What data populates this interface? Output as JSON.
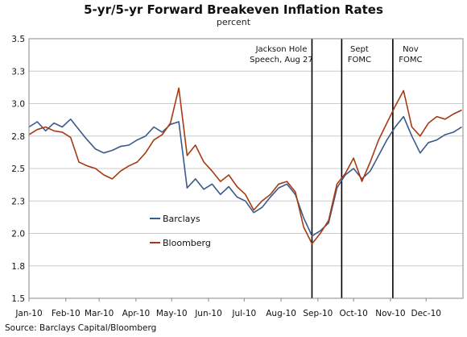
{
  "chart_data": {
    "type": "line",
    "title": "5-yr/5-yr Forward Breakeven Inflation Rates",
    "subtitle": "percent",
    "xlabel": "",
    "ylabel": "",
    "ylim": [
      1.5,
      3.5
    ],
    "y_ticks": [
      "1.5",
      "1.8",
      "2.0",
      "2.3",
      "2.5",
      "2.8",
      "3.0",
      "3.3",
      "3.5"
    ],
    "x_ticks": [
      "Jan-10",
      "Feb-10",
      "Mar-10",
      "Apr-10",
      "May-10",
      "Jun-10",
      "Jul-10",
      "Aug-10",
      "Sep-10",
      "Oct-10",
      "Nov-10",
      "Dec-10"
    ],
    "grid": true,
    "legend_position": "lower-left",
    "colors": {
      "Barclays": "#3a5a8c",
      "Bloomberg": "#a63a12",
      "grid": "#cccccc",
      "event": "#000000"
    },
    "series": [
      {
        "name": "Barclays",
        "x": [
          "2010-01-01",
          "2010-01-08",
          "2010-01-15",
          "2010-01-22",
          "2010-01-29",
          "2010-02-05",
          "2010-02-12",
          "2010-02-19",
          "2010-02-26",
          "2010-03-05",
          "2010-03-12",
          "2010-03-19",
          "2010-03-26",
          "2010-04-02",
          "2010-04-09",
          "2010-04-16",
          "2010-04-23",
          "2010-04-30",
          "2010-05-07",
          "2010-05-14",
          "2010-05-21",
          "2010-05-28",
          "2010-06-04",
          "2010-06-11",
          "2010-06-18",
          "2010-06-25",
          "2010-07-02",
          "2010-07-09",
          "2010-07-16",
          "2010-07-23",
          "2010-07-30",
          "2010-08-06",
          "2010-08-13",
          "2010-08-20",
          "2010-08-27",
          "2010-09-03",
          "2010-09-10",
          "2010-09-17",
          "2010-09-24",
          "2010-10-01",
          "2010-10-08",
          "2010-10-15",
          "2010-10-22",
          "2010-10-29",
          "2010-11-05",
          "2010-11-12",
          "2010-11-19",
          "2010-11-26",
          "2010-12-03",
          "2010-12-10",
          "2010-12-17",
          "2010-12-24",
          "2010-12-31"
        ],
        "values": [
          2.82,
          2.86,
          2.79,
          2.85,
          2.82,
          2.88,
          2.8,
          2.72,
          2.65,
          2.62,
          2.64,
          2.67,
          2.68,
          2.72,
          2.75,
          2.82,
          2.78,
          2.84,
          2.86,
          2.35,
          2.42,
          2.34,
          2.38,
          2.3,
          2.36,
          2.28,
          2.25,
          2.16,
          2.2,
          2.28,
          2.35,
          2.38,
          2.3,
          2.12,
          1.98,
          2.02,
          2.08,
          2.35,
          2.45,
          2.5,
          2.42,
          2.48,
          2.6,
          2.72,
          2.82,
          2.9,
          2.75,
          2.62,
          2.7,
          2.72,
          2.76,
          2.78,
          2.82
        ]
      },
      {
        "name": "Bloomberg",
        "x": [
          "2010-01-01",
          "2010-01-08",
          "2010-01-15",
          "2010-01-22",
          "2010-01-29",
          "2010-02-05",
          "2010-02-12",
          "2010-02-19",
          "2010-02-26",
          "2010-03-05",
          "2010-03-12",
          "2010-03-19",
          "2010-03-26",
          "2010-04-02",
          "2010-04-09",
          "2010-04-16",
          "2010-04-23",
          "2010-04-30",
          "2010-05-07",
          "2010-05-14",
          "2010-05-21",
          "2010-05-28",
          "2010-06-04",
          "2010-06-11",
          "2010-06-18",
          "2010-06-25",
          "2010-07-02",
          "2010-07-09",
          "2010-07-16",
          "2010-07-23",
          "2010-07-30",
          "2010-08-06",
          "2010-08-13",
          "2010-08-20",
          "2010-08-27",
          "2010-09-03",
          "2010-09-10",
          "2010-09-17",
          "2010-09-24",
          "2010-10-01",
          "2010-10-08",
          "2010-10-15",
          "2010-10-22",
          "2010-10-29",
          "2010-11-05",
          "2010-11-12",
          "2010-11-19",
          "2010-11-26",
          "2010-12-03",
          "2010-12-10",
          "2010-12-17",
          "2010-12-24",
          "2010-12-31"
        ],
        "values": [
          2.76,
          2.8,
          2.82,
          2.79,
          2.78,
          2.74,
          2.55,
          2.52,
          2.5,
          2.45,
          2.42,
          2.48,
          2.52,
          2.55,
          2.62,
          2.72,
          2.76,
          2.85,
          3.12,
          2.6,
          2.68,
          2.55,
          2.48,
          2.4,
          2.45,
          2.36,
          2.3,
          2.18,
          2.25,
          2.3,
          2.38,
          2.4,
          2.32,
          2.05,
          1.92,
          2.0,
          2.1,
          2.38,
          2.46,
          2.58,
          2.4,
          2.55,
          2.72,
          2.85,
          2.98,
          3.1,
          2.82,
          2.75,
          2.85,
          2.9,
          2.88,
          2.92,
          2.95
        ]
      }
    ],
    "event_lines": [
      {
        "date": "2010-08-27",
        "label_lines": [
          "Jackson Hole",
          "Speech, Aug 27"
        ]
      },
      {
        "date": "2010-09-21",
        "label_lines": [
          "Sept",
          "FOMC"
        ]
      },
      {
        "date": "2010-11-03",
        "label_lines": [
          "Nov",
          "FOMC"
        ]
      }
    ]
  },
  "source": "Source: Barclays Capital/Bloomberg"
}
